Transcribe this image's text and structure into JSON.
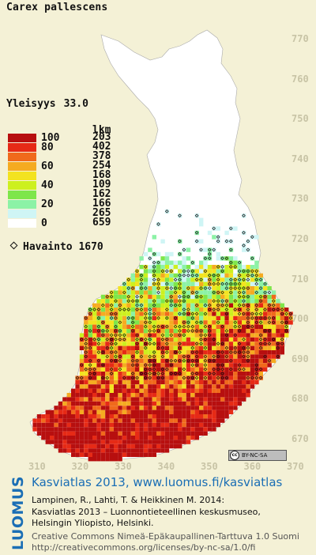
{
  "species": "Carex pallescens",
  "frequency": {
    "label": "Yleisyys",
    "value": "33.0"
  },
  "legend": {
    "count_header": "lkm",
    "classes": [
      {
        "label": "100",
        "count": "203",
        "color": "#b70f0f"
      },
      {
        "label": "80",
        "count": "402",
        "color": "#e62a16"
      },
      {
        "label": "",
        "count": "378",
        "color": "#f06a1c"
      },
      {
        "label": "60",
        "count": "254",
        "color": "#f5ab21"
      },
      {
        "label": "",
        "count": "168",
        "color": "#f3e320"
      },
      {
        "label": "40",
        "count": "109",
        "color": "#cdf01e"
      },
      {
        "label": "",
        "count": "162",
        "color": "#7ee64a"
      },
      {
        "label": "20",
        "count": "166",
        "color": "#8cf2a6"
      },
      {
        "label": "",
        "count": "265",
        "color": "#cff5f5"
      },
      {
        "label": "0",
        "count": "659",
        "color": "#ffffff"
      }
    ]
  },
  "observations": {
    "label": "Havainto",
    "count": "1670"
  },
  "axis": {
    "y_ticks": [
      "770",
      "760",
      "750",
      "740",
      "730",
      "720",
      "710",
      "700",
      "690",
      "680",
      "670"
    ],
    "x_ticks": [
      "310",
      "320",
      "330",
      "340",
      "350",
      "360",
      "370"
    ]
  },
  "license_badge": "BY-NC-SA",
  "logo": "LUOMUS",
  "credits": {
    "atlas": "Kasviatlas 2013, www.luomus.fi/kasviatlas",
    "ref1": "Lampinen, R., Lahti, T. & Heikkinen M. 2014:",
    "ref2": "Kasviatlas 2013 – Luonnontieteellinen keskusmuseo,",
    "ref3": "Helsingin Yliopisto, Helsinki.",
    "lic1": "Creative Commons Nimeä-Epäkaupallinen-Tarttuva 1.0 Suomi",
    "lic2": "http://creativecommons.org/licenses/by-nc-sa/1.0/fi"
  },
  "colors": {
    "background": "#f4f1d6",
    "land": "#ffffff",
    "tick": "#c8c4a6",
    "brand": "#1a6eb5"
  }
}
